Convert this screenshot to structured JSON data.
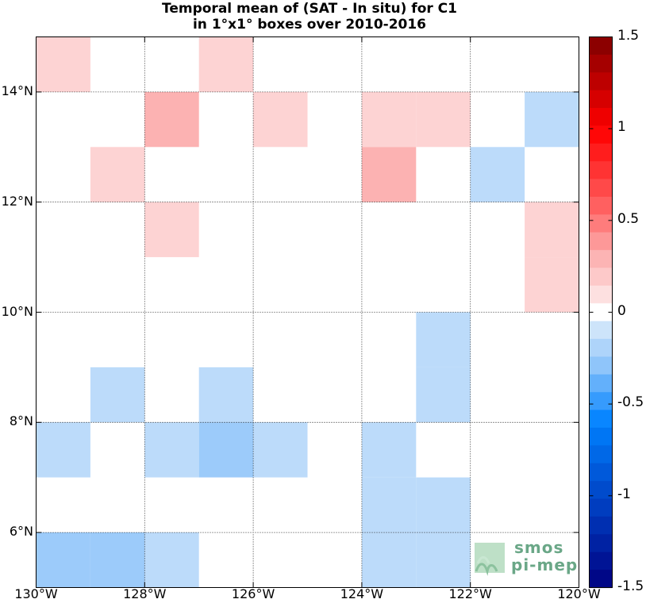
{
  "title": {
    "line1": "Temporal mean of (SAT - In situ) for C1",
    "line2": "in 1°x1° boxes over 2010-2016"
  },
  "chart_data": {
    "type": "heatmap",
    "x_range": [
      -130,
      -120
    ],
    "y_range": [
      5,
      15
    ],
    "x_ticks": [
      {
        "value": -130,
        "label": "130°W"
      },
      {
        "value": -128,
        "label": "128°W"
      },
      {
        "value": -126,
        "label": "126°W"
      },
      {
        "value": -124,
        "label": "124°W"
      },
      {
        "value": -122,
        "label": "122°W"
      },
      {
        "value": -120,
        "label": "120°W"
      }
    ],
    "y_ticks": [
      {
        "value": 14,
        "label": "14°N"
      },
      {
        "value": 12,
        "label": "12°N"
      },
      {
        "value": 10,
        "label": "10°N"
      },
      {
        "value": 8,
        "label": "8°N"
      },
      {
        "value": 6,
        "label": "6°N"
      }
    ],
    "grid": true,
    "color_limits": [
      -1.5,
      1.5
    ],
    "colorbar_levels": 31,
    "colorbar_ticks": [
      {
        "value": 1.5,
        "label": "1.5"
      },
      {
        "value": 1,
        "label": "1"
      },
      {
        "value": 0.5,
        "label": "0.5"
      },
      {
        "value": 0,
        "label": "0"
      },
      {
        "value": -0.5,
        "label": "-0.5"
      },
      {
        "value": -1,
        "label": "-1"
      },
      {
        "value": -1.5,
        "label": "-1.5"
      }
    ],
    "cells": [
      {
        "lon": -130,
        "lat": 14,
        "value": 0.15
      },
      {
        "lon": -127,
        "lat": 14,
        "value": 0.15
      },
      {
        "lon": -128,
        "lat": 13,
        "value": 0.3
      },
      {
        "lon": -126,
        "lat": 13,
        "value": 0.15
      },
      {
        "lon": -124,
        "lat": 13,
        "value": 0.15
      },
      {
        "lon": -123,
        "lat": 13,
        "value": 0.15
      },
      {
        "lon": -121,
        "lat": 13,
        "value": -0.15
      },
      {
        "lon": -129,
        "lat": 12,
        "value": 0.15
      },
      {
        "lon": -124,
        "lat": 12,
        "value": 0.3
      },
      {
        "lon": -122,
        "lat": 12,
        "value": -0.15
      },
      {
        "lon": -128,
        "lat": 11,
        "value": 0.15
      },
      {
        "lon": -121,
        "lat": 11,
        "value": 0.15
      },
      {
        "lon": -121,
        "lat": 10,
        "value": 0.15
      },
      {
        "lon": -123,
        "lat": 9,
        "value": -0.15
      },
      {
        "lon": -129,
        "lat": 8,
        "value": -0.15
      },
      {
        "lon": -127,
        "lat": 8,
        "value": -0.15
      },
      {
        "lon": -123,
        "lat": 8,
        "value": -0.15
      },
      {
        "lon": -130,
        "lat": 7,
        "value": -0.15
      },
      {
        "lon": -128,
        "lat": 7,
        "value": -0.15
      },
      {
        "lon": -127,
        "lat": 7,
        "value": -0.25
      },
      {
        "lon": -126,
        "lat": 7,
        "value": -0.15
      },
      {
        "lon": -124,
        "lat": 7,
        "value": -0.15
      },
      {
        "lon": -124,
        "lat": 6,
        "value": -0.15
      },
      {
        "lon": -123,
        "lat": 6,
        "value": -0.15
      },
      {
        "lon": -130,
        "lat": 5,
        "value": -0.25
      },
      {
        "lon": -129,
        "lat": 5,
        "value": -0.25
      },
      {
        "lon": -128,
        "lat": 5,
        "value": -0.15
      },
      {
        "lon": -124,
        "lat": 5,
        "value": -0.15
      },
      {
        "lon": -123,
        "lat": 5,
        "value": -0.15
      }
    ]
  },
  "logo": {
    "line1": "smos",
    "line2": "pi-mep"
  }
}
